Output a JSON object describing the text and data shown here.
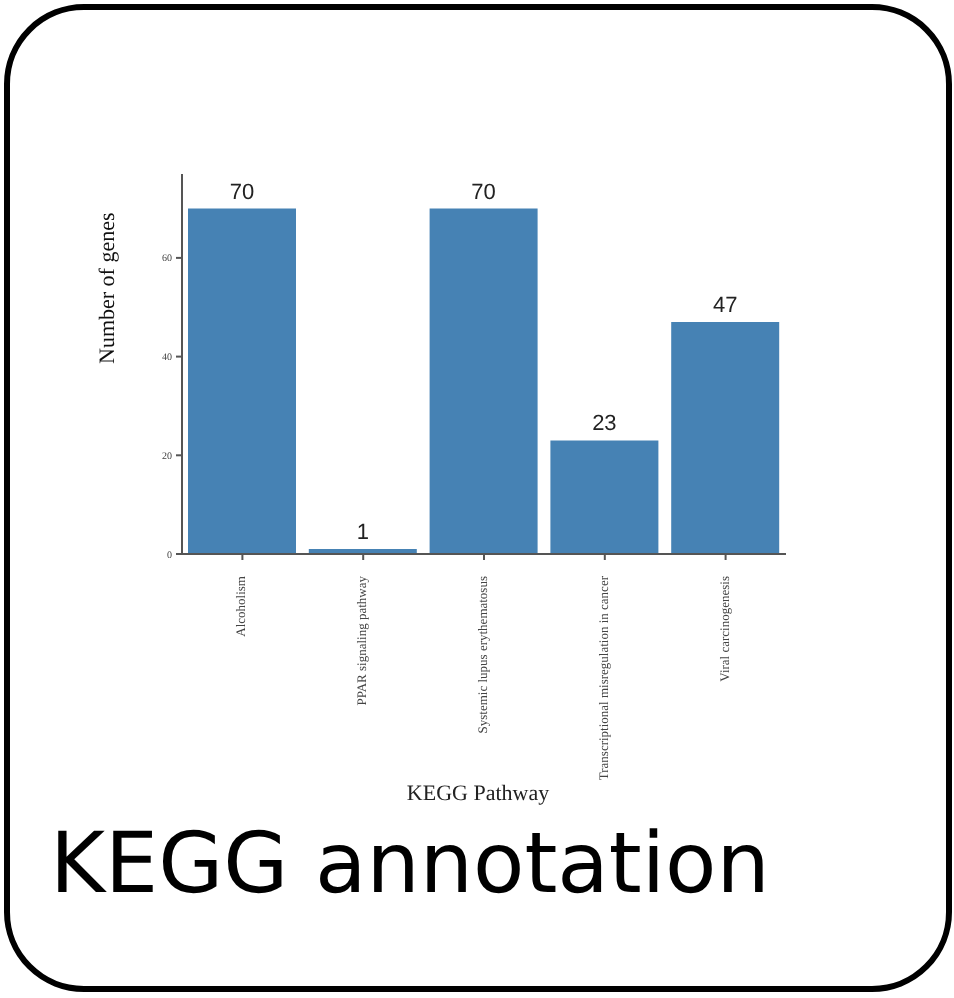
{
  "chart_data": {
    "type": "bar",
    "title": "KEGG annotation",
    "xlabel": "KEGG Pathway",
    "ylabel": "Number of genes",
    "categories": [
      "Alcoholism",
      "PPAR signaling pathway",
      "Systemic lupus erythematosus",
      "Transcriptional misregulation in cancer",
      "Viral carcinogenesis"
    ],
    "values": [
      70,
      1,
      70,
      23,
      47
    ],
    "color": "#4682b4",
    "ylim": [
      0,
      77
    ],
    "yticks": [
      0,
      20,
      40,
      60
    ],
    "grid": false,
    "data_labels": true
  }
}
